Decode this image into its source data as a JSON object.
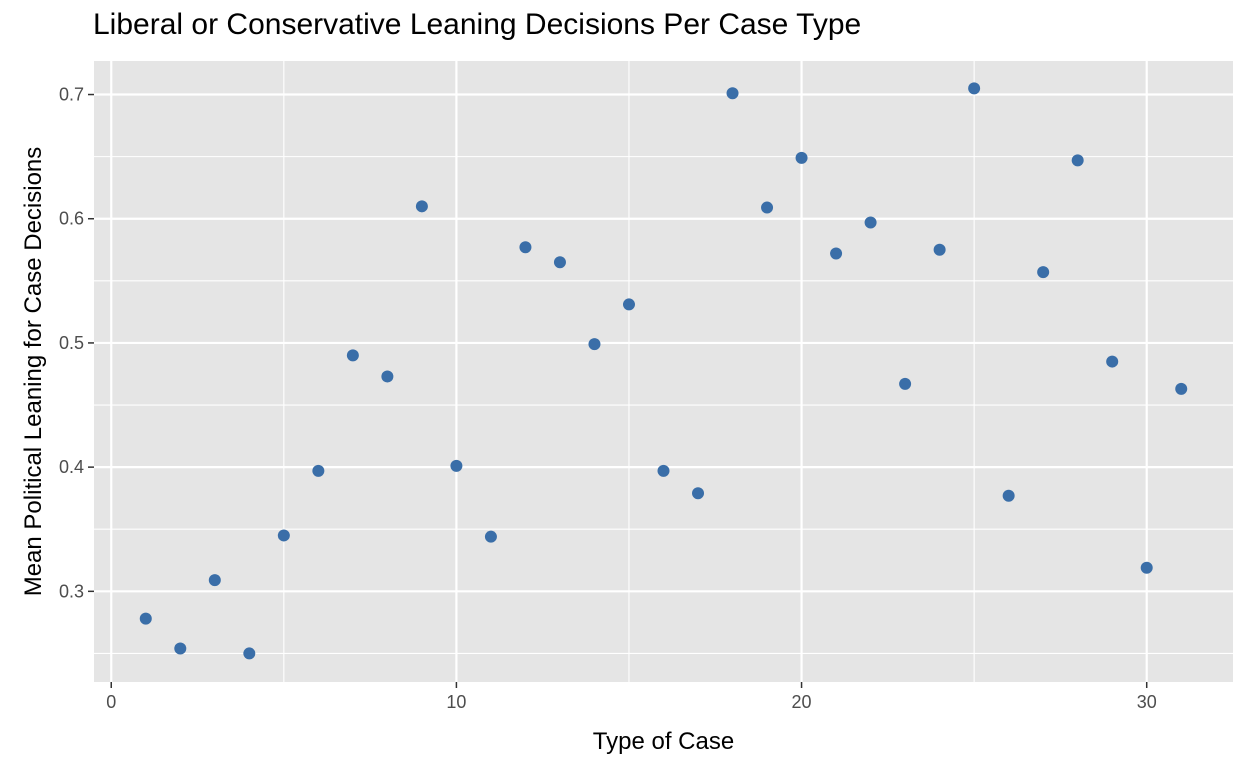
{
  "chart_data": {
    "type": "scatter",
    "title": "Liberal or Conservative Leaning Decisions Per Case Type",
    "xlabel": "Type of Case",
    "ylabel": "Mean Political Leaning for Case Decisions",
    "xlim": [
      -0.5,
      32.5
    ],
    "ylim": [
      0.227,
      0.727
    ],
    "x_ticks": [
      0,
      10,
      20,
      30
    ],
    "y_ticks": [
      0.3,
      0.4,
      0.5,
      0.6,
      0.7
    ],
    "x_tick_labels": [
      "0",
      "10",
      "20",
      "30"
    ],
    "y_tick_labels": [
      "0.3",
      "0.4",
      "0.5",
      "0.6",
      "0.7"
    ],
    "grid": true,
    "point_color": "#3A6EA8",
    "panel_color": "#E5E5E5",
    "x": [
      1,
      2,
      3,
      4,
      5,
      6,
      7,
      8,
      9,
      10,
      11,
      12,
      13,
      14,
      15,
      16,
      17,
      18,
      19,
      20,
      21,
      22,
      23,
      24,
      25,
      26,
      27,
      28,
      29,
      30,
      31
    ],
    "y": [
      0.278,
      0.254,
      0.309,
      0.25,
      0.345,
      0.397,
      0.49,
      0.473,
      0.61,
      0.401,
      0.344,
      0.577,
      0.565,
      0.499,
      0.531,
      0.397,
      0.379,
      0.701,
      0.609,
      0.649,
      0.572,
      0.597,
      0.467,
      0.575,
      0.705,
      0.377,
      0.557,
      0.647,
      0.485,
      0.319,
      0.463
    ]
  }
}
